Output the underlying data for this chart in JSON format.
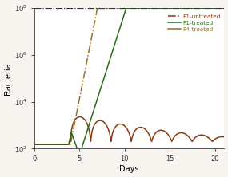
{
  "title": "",
  "xlabel": "Days",
  "ylabel": "Bacteria",
  "xlim": [
    0,
    21
  ],
  "ylim_log_min": 2,
  "ylim_log_max": 8,
  "colors": {
    "P1_treated": "#8B3A10",
    "P4_treated": "#2A6B1A",
    "P1_untreated": "#9B7020",
    "threshold": "#333333"
  },
  "legend_labels": [
    "P1-treated",
    "P4-treated",
    "P1-untreated"
  ],
  "threshold": 100000000.0,
  "background_color": "#ffffff",
  "fig_background": "#f7f3ee"
}
